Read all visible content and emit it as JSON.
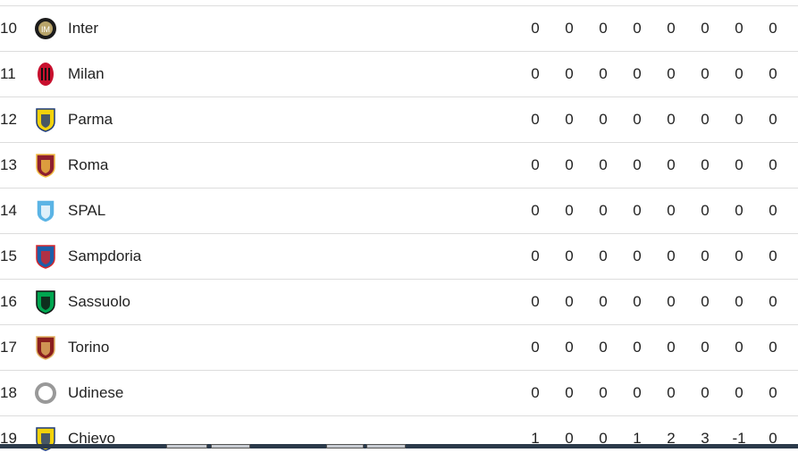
{
  "rows": [
    {
      "pos": "10",
      "team": "Inter",
      "logo": "inter-crest",
      "colors": [
        "#1b1b1b",
        "#b8a46a"
      ],
      "stats": [
        "0",
        "0",
        "0",
        "0",
        "0",
        "0",
        "0",
        "0"
      ]
    },
    {
      "pos": "11",
      "team": "Milan",
      "logo": "milan-crest",
      "colors": [
        "#c8102e",
        "#111111"
      ],
      "stats": [
        "0",
        "0",
        "0",
        "0",
        "0",
        "0",
        "0",
        "0"
      ]
    },
    {
      "pos": "12",
      "team": "Parma",
      "logo": "parma-crest",
      "colors": [
        "#f2d20c",
        "#1d3a7a"
      ],
      "stats": [
        "0",
        "0",
        "0",
        "0",
        "0",
        "0",
        "0",
        "0"
      ]
    },
    {
      "pos": "13",
      "team": "Roma",
      "logo": "roma-crest",
      "colors": [
        "#8e1f2f",
        "#f0bc42"
      ],
      "stats": [
        "0",
        "0",
        "0",
        "0",
        "0",
        "0",
        "0",
        "0"
      ]
    },
    {
      "pos": "14",
      "team": "SPAL",
      "logo": "spal-crest",
      "colors": [
        "#5bb4e5",
        "#ffffff"
      ],
      "stats": [
        "0",
        "0",
        "0",
        "0",
        "0",
        "0",
        "0",
        "0"
      ]
    },
    {
      "pos": "15",
      "team": "Sampdoria",
      "logo": "sampdoria-crest",
      "colors": [
        "#1b5faa",
        "#d6262c"
      ],
      "stats": [
        "0",
        "0",
        "0",
        "0",
        "0",
        "0",
        "0",
        "0"
      ]
    },
    {
      "pos": "16",
      "team": "Sassuolo",
      "logo": "sassuolo-crest",
      "colors": [
        "#00a650",
        "#111111"
      ],
      "stats": [
        "0",
        "0",
        "0",
        "0",
        "0",
        "0",
        "0",
        "0"
      ]
    },
    {
      "pos": "17",
      "team": "Torino",
      "logo": "torino-crest",
      "colors": [
        "#8a1e1e",
        "#e0b060"
      ],
      "stats": [
        "0",
        "0",
        "0",
        "0",
        "0",
        "0",
        "0",
        "0"
      ]
    },
    {
      "pos": "18",
      "team": "Udinese",
      "logo": "udinese-crest",
      "colors": [
        "#999999",
        "#ffffff"
      ],
      "stats": [
        "0",
        "0",
        "0",
        "0",
        "0",
        "0",
        "0",
        "0"
      ]
    },
    {
      "pos": "19",
      "team": "Chievo",
      "logo": "chievo-crest",
      "colors": [
        "#f2d20c",
        "#1d3a7a"
      ],
      "stats": [
        "1",
        "0",
        "0",
        "1",
        "2",
        "3",
        "-1",
        "0"
      ]
    }
  ]
}
